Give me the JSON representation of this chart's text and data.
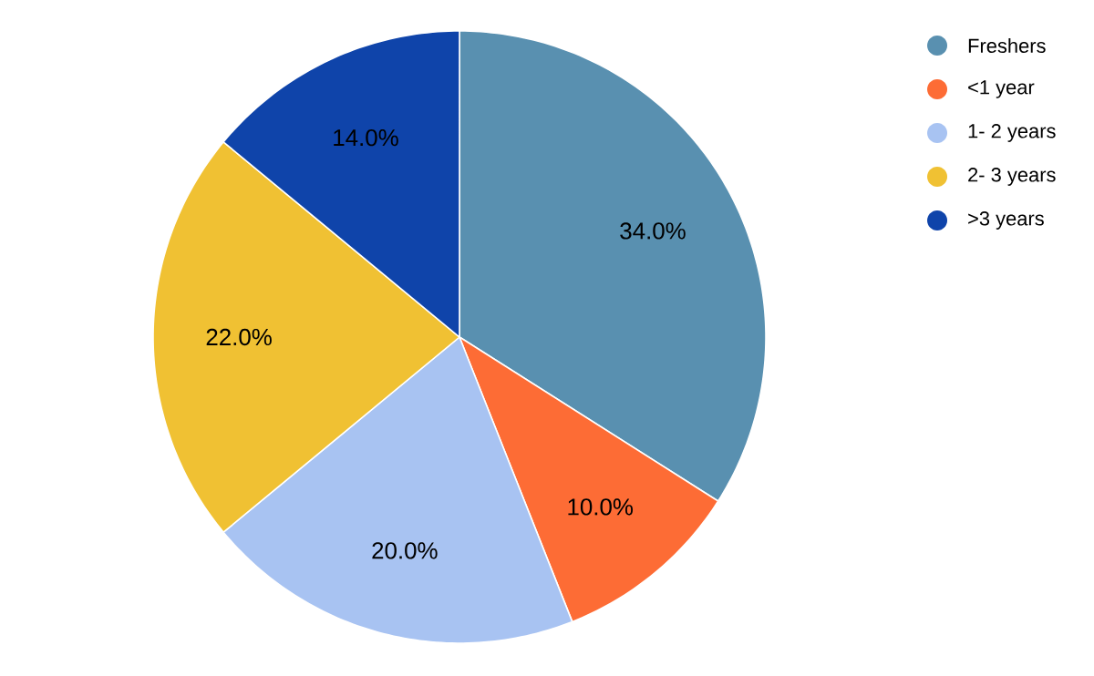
{
  "chart_data": {
    "type": "pie",
    "categories": [
      "Freshers",
      "<1 year",
      "1- 2 years",
      "2- 3 years",
      ">3 years"
    ],
    "values": [
      34,
      10,
      20,
      22,
      14
    ],
    "value_labels": [
      "34.0%",
      "10.0%",
      "20.0%",
      "22.0%",
      "14.0%"
    ],
    "colors": [
      "#5990b0",
      "#fd6c35",
      "#a8c3f2",
      "#f0c133",
      "#0f44aa"
    ],
    "legend": "top right"
  }
}
